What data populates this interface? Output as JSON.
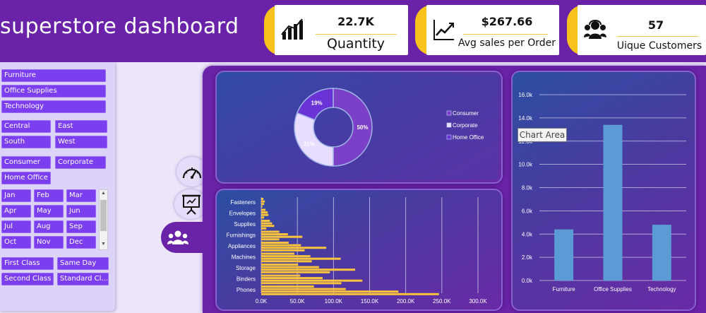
{
  "header": {
    "title": "superstore dashboard"
  },
  "kpis": [
    {
      "value": "22.7K",
      "label": "Quantity",
      "icon": "bar-chart-icon"
    },
    {
      "value": "$267.66",
      "label": "Avg sales per Order",
      "icon": "trend-line-icon"
    },
    {
      "value": "57",
      "label": "Uique Customers",
      "icon": "customers-icon"
    }
  ],
  "slicers": {
    "category": [
      "Furniture",
      "Office Supplies",
      "Technology"
    ],
    "region": [
      "Central",
      "East",
      "South",
      "West"
    ],
    "segment": [
      "Consumer",
      "Corporate",
      "Home Office"
    ],
    "months": [
      "Jan",
      "Feb",
      "Mar",
      "Apr",
      "May",
      "Jun",
      "Jul",
      "Aug",
      "Sep",
      "Oct",
      "Nov",
      "Dec"
    ],
    "ship_mode": [
      "First Class",
      "Same Day",
      "Second Class",
      "Standard Cl..."
    ]
  },
  "nav": {
    "icons": [
      "speedometer-icon",
      "presentation-icon",
      "people-icon"
    ],
    "active": "people-icon"
  },
  "tooltip": {
    "text": "Chart Area"
  },
  "colors": {
    "header": "#6a23a8",
    "kpi_tab": "#f7c31a",
    "chip": "#7b3ff0",
    "bar_yellow": "#f9c33b",
    "bar_blue": "#5b9bd5"
  },
  "chart_data": [
    {
      "type": "pie",
      "donut": true,
      "labels": [
        "Consumer",
        "Corporate",
        "Home Office"
      ],
      "values": [
        50,
        31,
        19
      ],
      "data_labels": [
        "50%",
        "31%",
        "19%"
      ],
      "colors": [
        "#7c3fc7",
        "#e8dcff",
        "#6a33d6"
      ],
      "legend": "right"
    },
    {
      "type": "bar",
      "orientation": "horizontal",
      "categories": [
        "Fasteners",
        "Envelopes",
        "Supplies",
        "Furnishings",
        "Appliances",
        "Machines",
        "Storage",
        "Binders",
        "Phones"
      ],
      "values": [
        3000,
        6000,
        12000,
        25000,
        38000,
        46000,
        51000,
        54000,
        73000
      ],
      "values2": [
        5000,
        9000,
        15000,
        37000,
        55000,
        68000,
        80000,
        85000,
        117000
      ],
      "values3": [
        4000,
        10000,
        18000,
        57000,
        90000,
        110000,
        130000,
        140000,
        190000
      ],
      "values4": [
        1500,
        4000,
        7000,
        25000,
        60000,
        70000,
        95000,
        111000,
        246000
      ],
      "xlim": [
        0,
        300000
      ],
      "x_ticks": [
        "0.0K",
        "50.0K",
        "100.0K",
        "150.0K",
        "200.0K",
        "250.0K",
        "300.0K"
      ],
      "grid": true,
      "color": "#f9c33b"
    },
    {
      "type": "bar",
      "categories": [
        "Furniture",
        "Office Supplies",
        "Technology"
      ],
      "values": [
        4400,
        13400,
        4800
      ],
      "ylim": [
        0,
        16000
      ],
      "y_ticks": [
        "0.0k",
        "2.0k",
        "4.0k",
        "6.0k",
        "8.0k",
        "10.0k",
        "12.0k",
        "14.0k",
        "16.0k"
      ],
      "grid": true,
      "color": "#5b9bd5"
    }
  ]
}
